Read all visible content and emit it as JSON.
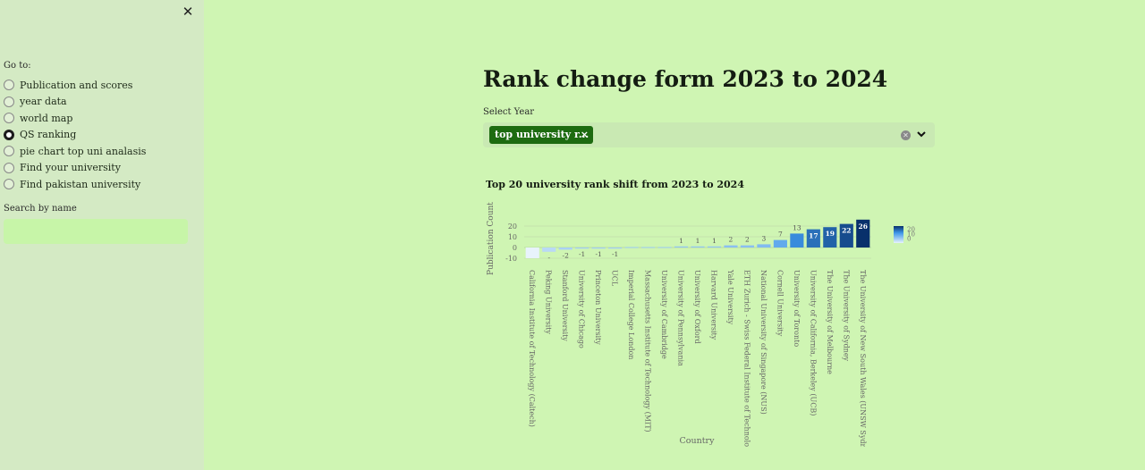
{
  "sidebar": {
    "close_label": "✕",
    "goto_label": "Go to:",
    "nav_items": [
      {
        "label": "Publication and scores",
        "selected": false
      },
      {
        "label": "year data",
        "selected": false
      },
      {
        "label": "world map",
        "selected": false
      },
      {
        "label": "QS ranking",
        "selected": true
      },
      {
        "label": "pie chart top uni analasis",
        "selected": false
      },
      {
        "label": "Find your university",
        "selected": false
      },
      {
        "label": "Find pakistan university",
        "selected": false
      }
    ],
    "search_label": "Search by name",
    "search_value": ""
  },
  "main": {
    "title": "Rank change form 2023 to 2024",
    "select_label": "Select Year",
    "selected_chip": "top university r...",
    "chip_remove": "×",
    "clear_icon": "clear-icon",
    "dropdown_icon": "chevron-down-icon"
  },
  "chart_data": {
    "type": "bar",
    "title": "Top 20 university rank shift from 2023 to 2024",
    "xlabel": "Country",
    "ylabel": "Publication Count",
    "ylim": [
      -10,
      26
    ],
    "yticks": [
      20,
      10,
      0,
      -10
    ],
    "colorbar": {
      "ticks": [
        20,
        10,
        0
      ],
      "low_color": "#e8f3fc",
      "high_color": "#08306b"
    },
    "categories": [
      "California Institute of Technology (Caltech)",
      "Peking University",
      "Stanford University",
      "University of Chicago",
      "Princeton University",
      "UCL",
      "Imperial College London",
      "Massachusetts Institute of Technology (MIT)",
      "University of Cambridge",
      "University of Pennsylvania",
      "University of Oxford",
      "Harvard University",
      "Yale University",
      "ETH Zurich - Swiss Federal Institute of Technology",
      "National University of Singapore (NUS)",
      "Cornell University",
      "University of Toronto",
      "University of California, Berkeley (UCB)",
      "The University of Melbourne",
      "The University of Sydney",
      "The University of New South Wales (UNSW Sydney)"
    ],
    "values": [
      -10,
      -4,
      -2,
      -1,
      -1,
      -1,
      0,
      0,
      0,
      1,
      1,
      1,
      2,
      2,
      3,
      7,
      13,
      17,
      19,
      22,
      26
    ],
    "data_labels": [
      "",
      "-",
      "-2",
      "-1",
      "-1",
      "-1",
      "",
      "",
      "",
      "1",
      "1",
      "1",
      "2",
      "2",
      "3",
      "7",
      "13",
      "17",
      "19",
      "22",
      "26"
    ]
  }
}
